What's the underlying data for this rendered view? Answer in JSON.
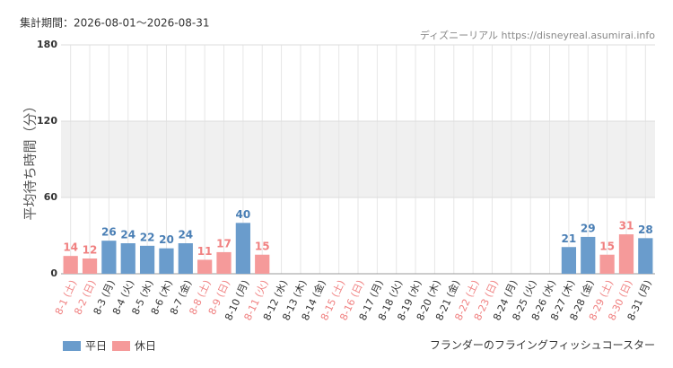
{
  "chart_data": {
    "type": "bar",
    "period": "集計期間：2026-08-01～2026-08-31",
    "source": "ディズニーリアル https://disneyreal.asumirai.info",
    "ylabel": "平均待ち時間（分）",
    "attraction": "フランダーのフライングフィッシュコースター",
    "categories": [
      "8-1 (土)",
      "8-2 (日)",
      "8-3 (月)",
      "8-4 (火)",
      "8-5 (水)",
      "8-6 (木)",
      "8-7 (金)",
      "8-8 (土)",
      "8-9 (日)",
      "8-10 (月)",
      "8-11 (火)",
      "8-12 (水)",
      "8-13 (木)",
      "8-14 (金)",
      "8-15 (土)",
      "8-16 (日)",
      "8-17 (月)",
      "8-18 (火)",
      "8-19 (水)",
      "8-20 (木)",
      "8-21 (金)",
      "8-22 (土)",
      "8-23 (日)",
      "8-24 (月)",
      "8-25 (火)",
      "8-26 (水)",
      "8-27 (木)",
      "8-28 (金)",
      "8-29 (土)",
      "8-30 (日)",
      "8-31 (月)"
    ],
    "category_colors": [
      "#f08080",
      "#f08080",
      "#333333",
      "#333333",
      "#333333",
      "#333333",
      "#333333",
      "#f08080",
      "#f08080",
      "#333333",
      "#f08080",
      "#333333",
      "#333333",
      "#333333",
      "#f08080",
      "#f08080",
      "#333333",
      "#333333",
      "#333333",
      "#333333",
      "#333333",
      "#f08080",
      "#f08080",
      "#333333",
      "#333333",
      "#333333",
      "#333333",
      "#333333",
      "#f08080",
      "#f08080",
      "#333333"
    ],
    "series": [
      {
        "name": "平日",
        "color": "#6a9ccc",
        "label_color": "#4a7fb5",
        "values": [
          null,
          null,
          26,
          24,
          22,
          20,
          24,
          null,
          null,
          40,
          null,
          null,
          null,
          null,
          null,
          null,
          null,
          null,
          null,
          null,
          null,
          null,
          null,
          null,
          null,
          null,
          21,
          29,
          null,
          null,
          28
        ]
      },
      {
        "name": "休日",
        "color": "#f59a9a",
        "label_color": "#f08080",
        "values": [
          14,
          12,
          null,
          null,
          null,
          null,
          null,
          11,
          17,
          null,
          15,
          null,
          null,
          null,
          null,
          null,
          null,
          null,
          null,
          null,
          null,
          null,
          null,
          null,
          null,
          null,
          null,
          null,
          15,
          31,
          null
        ]
      }
    ],
    "ylim": [
      0,
      180
    ],
    "yticks": [
      0,
      60,
      120,
      180
    ],
    "band": [
      60,
      120
    ],
    "grid": true
  }
}
